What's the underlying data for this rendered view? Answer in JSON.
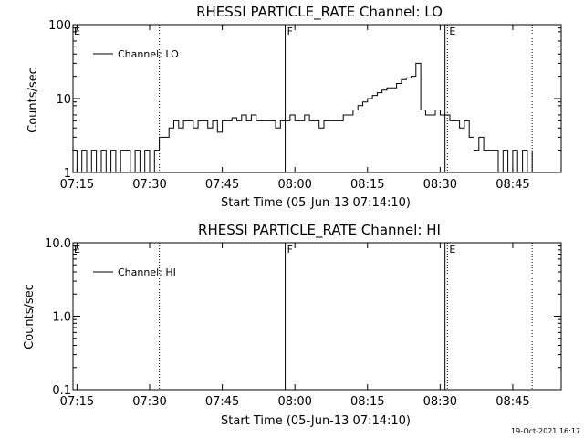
{
  "chart_data": [
    {
      "type": "line",
      "title": "RHESSI PARTICLE_RATE Channel: LO",
      "xlabel": "Start Time (05-Jun-13 07:14:10)",
      "ylabel": "Counts/sec",
      "yscale": "log",
      "ylim": [
        1,
        100
      ],
      "xlim": [
        "07:14:10",
        "08:55:00"
      ],
      "x_ticks": [
        "07:15",
        "07:30",
        "07:45",
        "08:00",
        "08:15",
        "08:30",
        "08:45"
      ],
      "y_ticks": [
        "1",
        "10",
        "100"
      ],
      "legend": {
        "entries": [
          "Channel: LO"
        ],
        "position": "top-left"
      },
      "markers": [
        {
          "label": "",
          "time": "07:32",
          "style": "dotted"
        },
        {
          "label": "F",
          "time": "07:58",
          "style": "solid"
        },
        {
          "label": "",
          "time": "08:31",
          "style": "solid"
        },
        {
          "label": "E",
          "time": "08:31.5",
          "style": "dotted"
        },
        {
          "label": "",
          "time": "08:49",
          "style": "dotted"
        }
      ],
      "series": [
        {
          "name": "Channel: LO",
          "points": [
            [
              "07:14",
              2
            ],
            [
              "07:15",
              1
            ],
            [
              "07:16",
              2
            ],
            [
              "07:17",
              1
            ],
            [
              "07:18",
              2
            ],
            [
              "07:19",
              1
            ],
            [
              "07:20",
              2
            ],
            [
              "07:21",
              1
            ],
            [
              "07:22",
              2
            ],
            [
              "07:23",
              1
            ],
            [
              "07:24",
              2
            ],
            [
              "07:25",
              2
            ],
            [
              "07:26",
              1
            ],
            [
              "07:27",
              2
            ],
            [
              "07:28",
              1
            ],
            [
              "07:29",
              2
            ],
            [
              "07:30",
              1
            ],
            [
              "07:31",
              2
            ],
            [
              "07:32",
              3
            ],
            [
              "07:33",
              3
            ],
            [
              "07:34",
              4
            ],
            [
              "07:35",
              5
            ],
            [
              "07:36",
              4
            ],
            [
              "07:37",
              5
            ],
            [
              "07:38",
              5
            ],
            [
              "07:39",
              4
            ],
            [
              "07:40",
              5
            ],
            [
              "07:41",
              5
            ],
            [
              "07:42",
              4
            ],
            [
              "07:43",
              5
            ],
            [
              "07:44",
              3.5
            ],
            [
              "07:45",
              5
            ],
            [
              "07:46",
              5
            ],
            [
              "07:47",
              5.5
            ],
            [
              "07:48",
              5
            ],
            [
              "07:49",
              6
            ],
            [
              "07:50",
              5
            ],
            [
              "07:51",
              6
            ],
            [
              "07:52",
              5
            ],
            [
              "07:53",
              5
            ],
            [
              "07:54",
              5
            ],
            [
              "07:55",
              5
            ],
            [
              "07:56",
              4
            ],
            [
              "07:57",
              5
            ],
            [
              "07:58",
              5
            ],
            [
              "07:59",
              6
            ],
            [
              "08:00",
              5
            ],
            [
              "08:01",
              5
            ],
            [
              "08:02",
              6
            ],
            [
              "08:03",
              5
            ],
            [
              "08:04",
              5
            ],
            [
              "08:05",
              4
            ],
            [
              "08:06",
              5
            ],
            [
              "08:07",
              5
            ],
            [
              "08:08",
              5
            ],
            [
              "08:09",
              5
            ],
            [
              "08:10",
              6
            ],
            [
              "08:11",
              6
            ],
            [
              "08:12",
              7
            ],
            [
              "08:13",
              8
            ],
            [
              "08:14",
              9
            ],
            [
              "08:15",
              10
            ],
            [
              "08:16",
              11
            ],
            [
              "08:17",
              12
            ],
            [
              "08:18",
              13
            ],
            [
              "08:19",
              14
            ],
            [
              "08:20",
              14
            ],
            [
              "08:21",
              16
            ],
            [
              "08:22",
              18
            ],
            [
              "08:23",
              19
            ],
            [
              "08:24",
              20
            ],
            [
              "08:25",
              30
            ],
            [
              "08:26",
              7
            ],
            [
              "08:27",
              6
            ],
            [
              "08:28",
              6
            ],
            [
              "08:29",
              7
            ],
            [
              "08:30",
              6
            ],
            [
              "08:31",
              6
            ],
            [
              "08:32",
              5
            ],
            [
              "08:33",
              5
            ],
            [
              "08:34",
              4
            ],
            [
              "08:35",
              5
            ],
            [
              "08:36",
              3
            ],
            [
              "08:37",
              2
            ],
            [
              "08:38",
              3
            ],
            [
              "08:39",
              2
            ],
            [
              "08:40",
              2
            ],
            [
              "08:41",
              2
            ],
            [
              "08:42",
              1
            ],
            [
              "08:43",
              2
            ],
            [
              "08:44",
              1
            ],
            [
              "08:45",
              2
            ],
            [
              "08:46",
              1
            ],
            [
              "08:47",
              2
            ],
            [
              "08:48",
              1
            ],
            [
              "08:49",
              2
            ]
          ]
        }
      ]
    },
    {
      "type": "line",
      "title": "RHESSI PARTICLE_RATE Channel: HI",
      "xlabel": "Start Time (05-Jun-13 07:14:10)",
      "ylabel": "Counts/sec",
      "yscale": "log",
      "ylim": [
        0.1,
        10
      ],
      "xlim": [
        "07:14:10",
        "08:55:00"
      ],
      "x_ticks": [
        "07:15",
        "07:30",
        "07:45",
        "08:00",
        "08:15",
        "08:30",
        "08:45"
      ],
      "y_ticks": [
        "0.1",
        "1.0",
        "10.0"
      ],
      "legend": {
        "entries": [
          "Channel: HI"
        ],
        "position": "top-left"
      },
      "markers": [
        {
          "label": "",
          "time": "07:32",
          "style": "dotted"
        },
        {
          "label": "F",
          "time": "07:58",
          "style": "solid"
        },
        {
          "label": "",
          "time": "08:31",
          "style": "solid"
        },
        {
          "label": "E",
          "time": "08:31.5",
          "style": "dotted"
        },
        {
          "label": "",
          "time": "08:49",
          "style": "dotted"
        }
      ],
      "series": [
        {
          "name": "Channel: HI",
          "points": []
        }
      ]
    }
  ],
  "corner_markers": {
    "left": "E"
  },
  "timestamp": "19-Oct-2021 16:17",
  "colors": {
    "background": "#ffffff",
    "foreground": "#000000"
  }
}
